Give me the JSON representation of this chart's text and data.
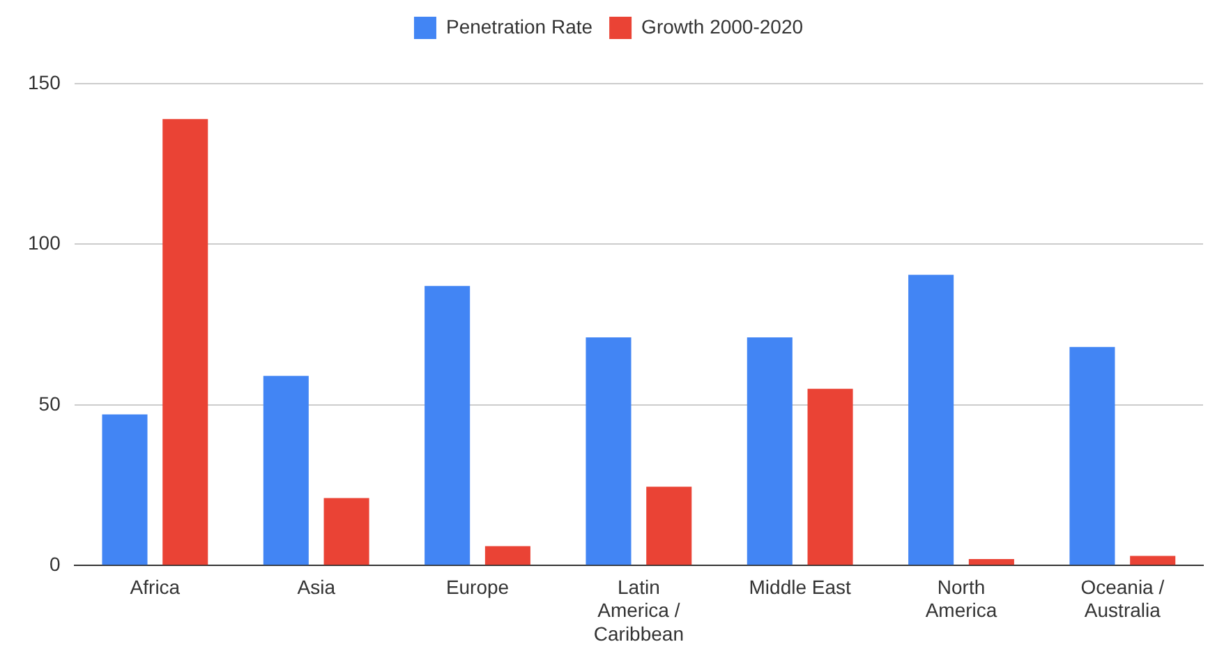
{
  "chart_data": {
    "type": "bar",
    "categories": [
      "Africa",
      "Asia",
      "Europe",
      "Latin America / Caribbean",
      "Middle East",
      "North America",
      "Oceania / Australia"
    ],
    "series": [
      {
        "name": "Penetration Rate",
        "color": "#4285f4",
        "values": [
          47,
          59,
          87,
          71,
          71,
          90.5,
          68
        ]
      },
      {
        "name": "Growth 2000-2020",
        "color": "#ea4335",
        "values": [
          139,
          21,
          6,
          24.5,
          55,
          2,
          3
        ]
      }
    ],
    "ylim": [
      0,
      150
    ],
    "yticks": [
      0,
      50,
      100,
      150
    ],
    "grid": "y",
    "legend": "top"
  }
}
